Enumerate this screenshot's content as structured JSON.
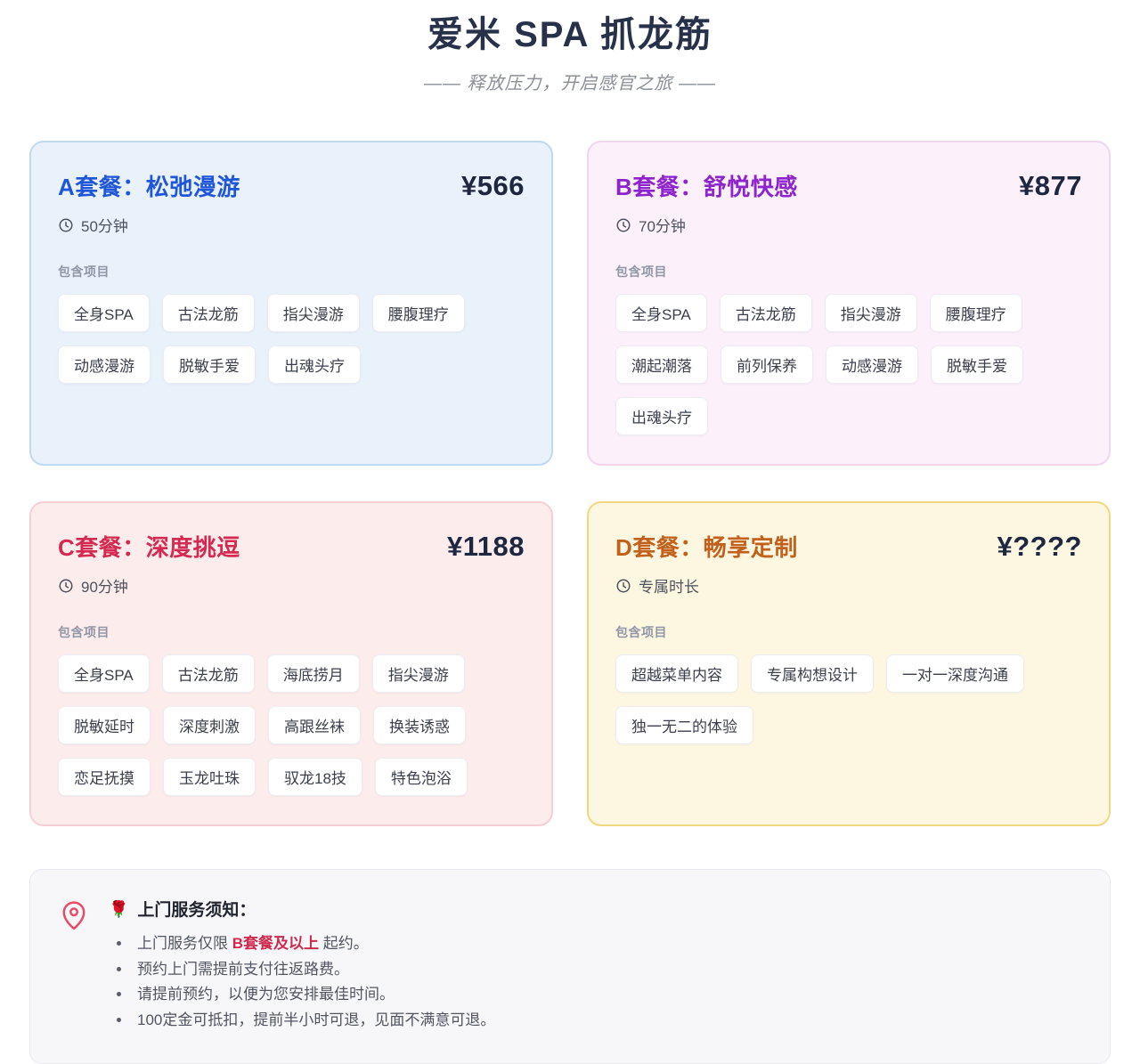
{
  "header": {
    "title": "爱米 SPA 抓龙筋",
    "subtitle": "—— 释放压力，开启感官之旅 ——"
  },
  "labels": {
    "includes": "包含项目"
  },
  "packages": [
    {
      "id": "A",
      "title": "A套餐：松弛漫游",
      "price": "¥566",
      "duration": "50分钟",
      "items": [
        "全身SPA",
        "古法龙筋",
        "指尖漫游",
        "腰腹理疗",
        "动感漫游",
        "脱敏手爱",
        "出魂头疗"
      ],
      "colors": {
        "bg": "#e9f1fb",
        "border": "#bfd9f0",
        "title": "#2057d9"
      }
    },
    {
      "id": "B",
      "title": "B套餐：舒悦快感",
      "price": "¥877",
      "duration": "70分钟",
      "items": [
        "全身SPA",
        "古法龙筋",
        "指尖漫游",
        "腰腹理疗",
        "潮起潮落",
        "前列保养",
        "动感漫游",
        "脱敏手爱",
        "出魂头疗"
      ],
      "colors": {
        "bg": "#fcf0fb",
        "border": "#f0d6ef",
        "title": "#8e24cc"
      }
    },
    {
      "id": "C",
      "title": "C套餐：深度挑逗",
      "price": "¥1188",
      "duration": "90分钟",
      "items": [
        "全身SPA",
        "古法龙筋",
        "海底捞月",
        "指尖漫游",
        "脱敏延时",
        "深度刺激",
        "高跟丝袜",
        "换装诱惑",
        "恋足抚摸",
        "玉龙吐珠",
        "驭龙18技",
        "特色泡浴"
      ],
      "colors": {
        "bg": "#fdecec",
        "border": "#f6cfd6",
        "title": "#d42950"
      }
    },
    {
      "id": "D",
      "title": "D套餐：畅享定制",
      "price": "¥????",
      "duration": "专属时长",
      "items": [
        "超越菜单内容",
        "专属构想设计",
        "一对一深度沟通",
        "独一无二的体验"
      ],
      "colors": {
        "bg": "#fdf7e2",
        "border": "#f1d77e",
        "title": "#c2611c"
      }
    }
  ],
  "notice": {
    "rose_icon": "🌹",
    "heading": "上门服务须知：",
    "highlight_color": "#d0294e",
    "bullets": [
      {
        "pre": "上门服务仅限 ",
        "highlight": "B套餐及以上",
        "post": " 起约。"
      },
      {
        "pre": "预约上门需提前支付往返路费。",
        "highlight": "",
        "post": ""
      },
      {
        "pre": "请提前预约，以便为您安排最佳时间。",
        "highlight": "",
        "post": ""
      },
      {
        "pre": "100定金可抵扣，提前半小时可退，见面不满意可退。",
        "highlight": "",
        "post": ""
      }
    ]
  }
}
